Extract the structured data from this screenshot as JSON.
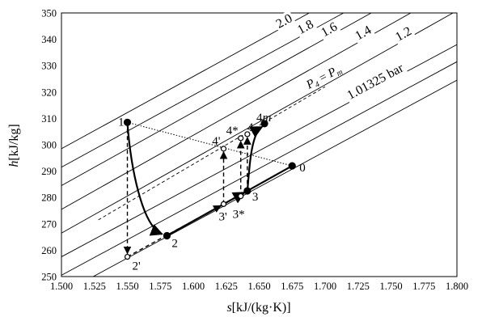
{
  "chart_data": {
    "type": "line",
    "xlabel": {
      "var": "s",
      "unit": "[kJ/(kg·K)]"
    },
    "ylabel": {
      "var": "h",
      "unit": "[kJ/kg]"
    },
    "xlim": [
      1.5,
      1.8
    ],
    "ylim": [
      250,
      350
    ],
    "xticks": [
      1.5,
      1.525,
      1.55,
      1.575,
      1.6,
      1.625,
      1.65,
      1.675,
      1.7,
      1.725,
      1.75,
      1.775,
      1.8
    ],
    "xtick_labels": [
      "1.500",
      "1.525",
      "1.550",
      "1.575",
      "1.600",
      "1.625",
      "1.650",
      "1.675",
      "1.700",
      "1.725",
      "1.750",
      "1.775",
      "1.800"
    ],
    "yticks": [
      250,
      260,
      270,
      280,
      290,
      300,
      310,
      320,
      330,
      340,
      350
    ],
    "ytick_labels": [
      "250",
      "260",
      "270",
      "280",
      "290",
      "300",
      "310",
      "320",
      "330",
      "340",
      "350"
    ],
    "grid": false,
    "isobars": [
      {
        "label": "2.0",
        "points": [
          [
            1.5,
            298.5
          ],
          [
            1.688,
            350
          ]
        ]
      },
      {
        "label": "1.8",
        "points": [
          [
            1.5,
            291.5
          ],
          [
            1.714,
            350
          ]
        ]
      },
      {
        "label": "1.6",
        "points": [
          [
            1.5,
            284.5
          ],
          [
            1.735,
            350
          ]
        ]
      },
      {
        "label": "1.4",
        "points": [
          [
            1.5,
            275.5
          ],
          [
            1.765,
            350
          ]
        ]
      },
      {
        "label": "1.2",
        "points": [
          [
            1.5,
            266.5
          ],
          [
            1.797,
            350
          ]
        ]
      },
      {
        "label": "1.01325 bar",
        "points": [
          [
            1.5,
            257.5
          ],
          [
            1.8,
            338
          ]
        ]
      },
      {
        "label": "",
        "points": [
          [
            1.5,
            250.5
          ],
          [
            1.8,
            331.5
          ]
        ]
      },
      {
        "label": "",
        "points": [
          [
            1.5,
            243.5
          ],
          [
            1.8,
            324.5
          ]
        ]
      }
    ],
    "dashed_isobar": {
      "label_var": "P",
      "label_sub": "4",
      "label_eq": " = ",
      "label_rhs": "P",
      "label_rhs_sub": "m",
      "points": [
        [
          1.528,
          271.5
        ],
        [
          1.7,
          322
        ]
      ]
    },
    "states": [
      {
        "name": "0",
        "s": 1.675,
        "h": 292,
        "filled": true
      },
      {
        "name": "1",
        "s": 1.55,
        "h": 308.5,
        "filled": true
      },
      {
        "name": "2",
        "s": 1.58,
        "h": 265.5,
        "filled": true
      },
      {
        "name": "2'",
        "s": 1.55,
        "h": 257.5,
        "filled": false
      },
      {
        "name": "3",
        "s": 1.641,
        "h": 282.5,
        "filled": true
      },
      {
        "name": "3'",
        "s": 1.623,
        "h": 277.5,
        "filled": false
      },
      {
        "name": "3*",
        "s": 1.636,
        "h": 280.5,
        "filled": false
      },
      {
        "name": "4'",
        "s": 1.623,
        "h": 298.5,
        "filled": false
      },
      {
        "name": "4*",
        "s": 1.636,
        "h": 302.5,
        "filled": false
      },
      {
        "name": "4",
        "s": 1.641,
        "h": 304,
        "filled": false
      },
      {
        "name": "4m",
        "s": 1.654,
        "h": 308,
        "filled": true
      }
    ],
    "processes": [
      {
        "from": "0",
        "to": "1",
        "style": "dotted",
        "arrow": false
      },
      {
        "from": "1",
        "to": "2",
        "style": "solid-curve",
        "arrow": true
      },
      {
        "from": "1",
        "to": "2'",
        "style": "dashed",
        "arrow": true
      },
      {
        "from": "2'",
        "to": "3'",
        "style": "dashed",
        "arrow": true
      },
      {
        "from": "2",
        "to": "3",
        "style": "solid",
        "arrow": true
      },
      {
        "from": "3",
        "to": "0",
        "style": "solid",
        "arrow": false
      },
      {
        "from": "3'",
        "to": "4'",
        "style": "dashed",
        "arrow": true
      },
      {
        "from": "3*",
        "to": "4*",
        "style": "dashed",
        "arrow": true
      },
      {
        "from": "3",
        "to": "4",
        "style": "dashed",
        "arrow": true
      },
      {
        "from": "3",
        "to": "4m",
        "style": "solid-curve",
        "arrow": true
      }
    ]
  }
}
